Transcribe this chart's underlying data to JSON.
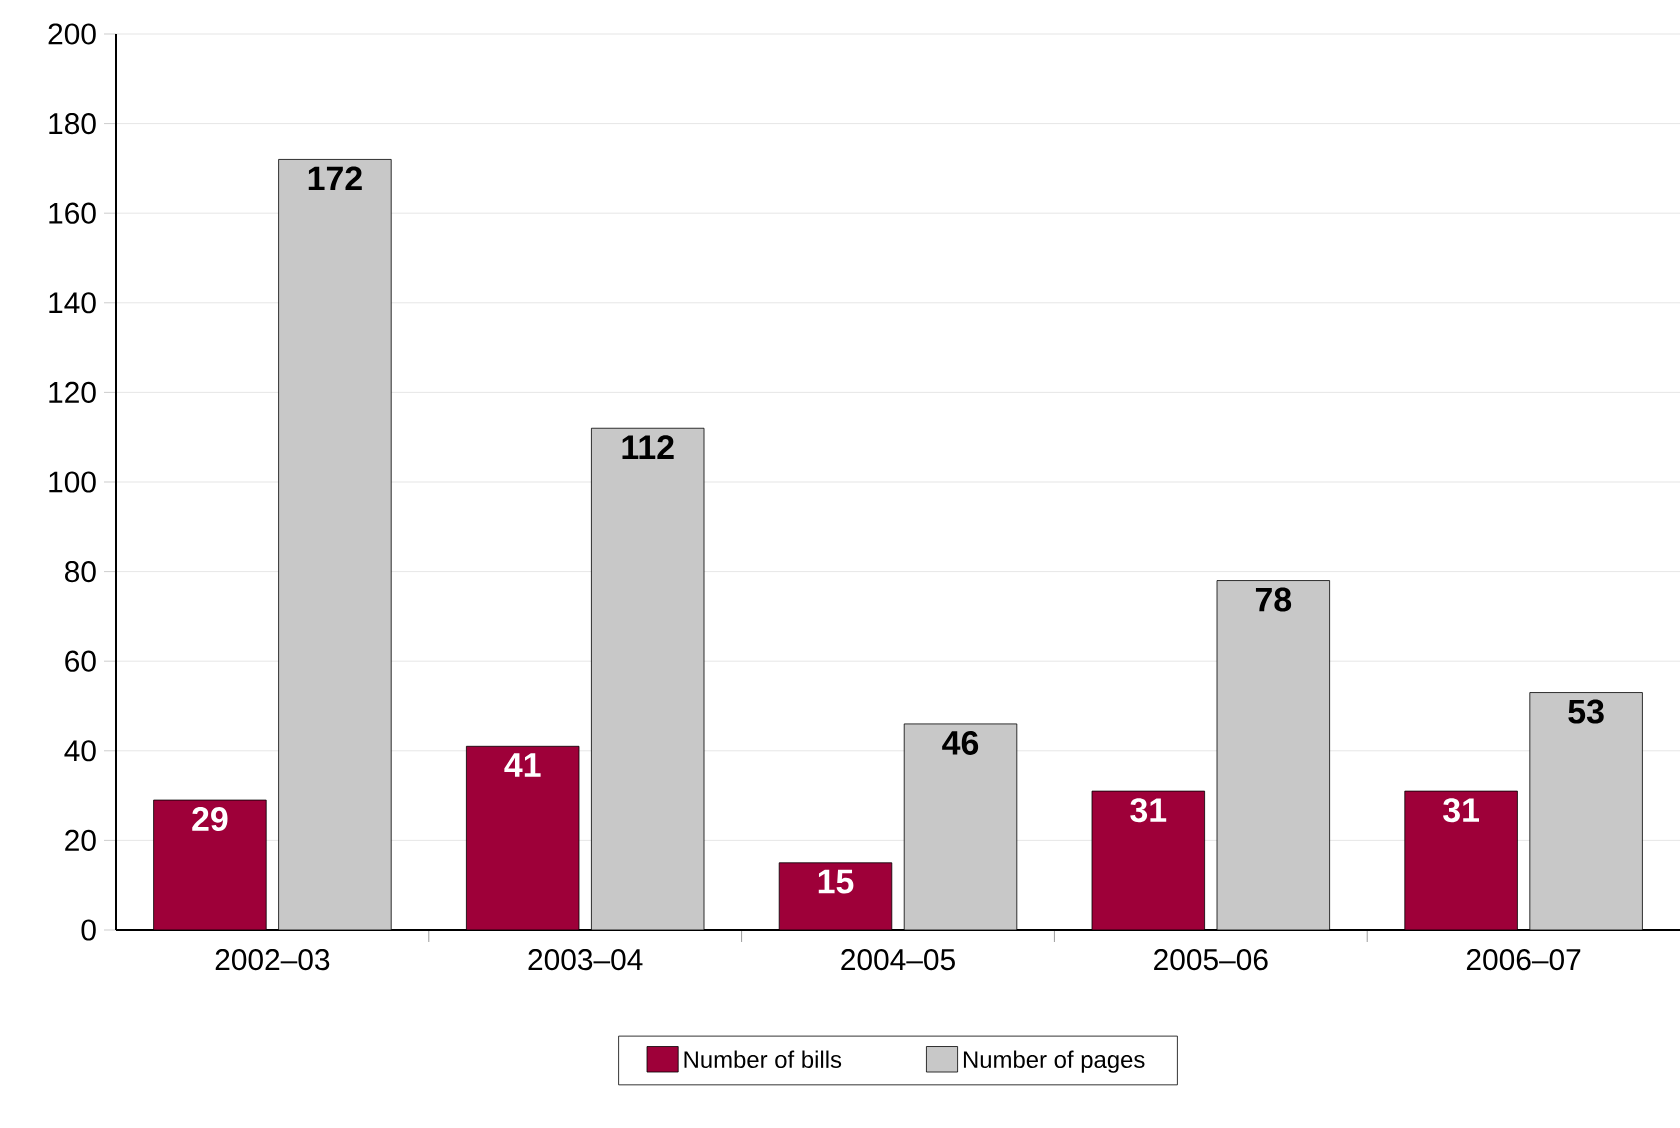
{
  "chart_data": {
    "type": "bar",
    "categories": [
      "2002–03",
      "2003–04",
      "2004–05",
      "2005–06",
      "2006–07"
    ],
    "series": [
      {
        "name": "Number of bills",
        "color": "#9e0039",
        "values": [
          29,
          41,
          15,
          31,
          31
        ]
      },
      {
        "name": "Number of pages",
        "color": "#c8c8c8",
        "values": [
          172,
          112,
          46,
          78,
          53
        ]
      }
    ],
    "ylim": [
      0,
      200
    ],
    "yticks": [
      0,
      20,
      40,
      60,
      80,
      100,
      120,
      140,
      160,
      180,
      200
    ],
    "grid": "y",
    "legend": "bottom",
    "data_labels": true
  }
}
